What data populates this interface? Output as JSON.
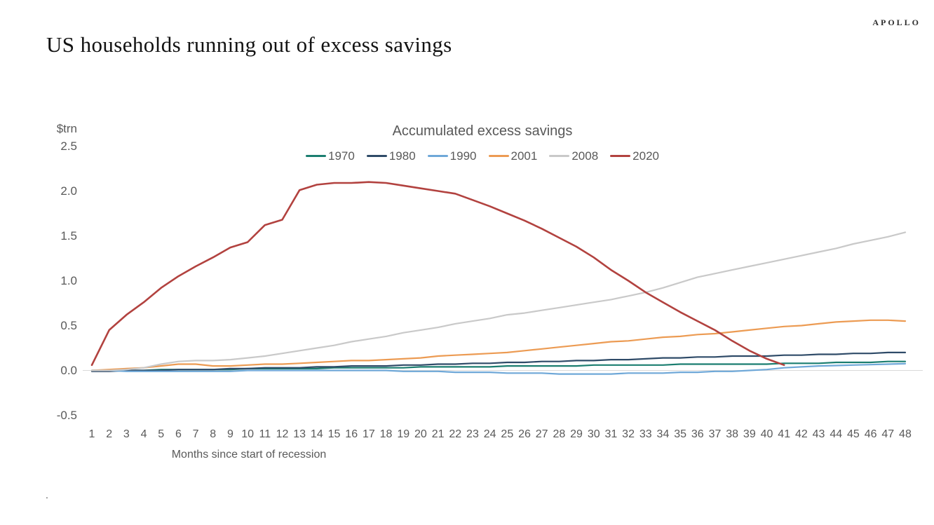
{
  "header": {
    "brand": "APOLLO",
    "title": "US households running out of excess savings"
  },
  "footer_dot": ".",
  "chart_data": {
    "type": "line",
    "title": "Accumulated excess savings",
    "ylabel_unit": "$trn",
    "xlabel": "Months since start of recession",
    "ylim": [
      -0.5,
      2.5
    ],
    "yticks": [
      "2.5",
      "2.0",
      "1.5",
      "1.0",
      "0.5",
      "0.0",
      "-0.5"
    ],
    "grid": "zero-baseline-only",
    "legend_position": "top-center",
    "x": [
      1,
      2,
      3,
      4,
      5,
      6,
      7,
      8,
      9,
      10,
      11,
      12,
      13,
      14,
      15,
      16,
      17,
      18,
      19,
      20,
      21,
      22,
      23,
      24,
      25,
      26,
      27,
      28,
      29,
      30,
      31,
      32,
      33,
      34,
      35,
      36,
      37,
      38,
      39,
      40,
      41,
      42,
      43,
      44,
      45,
      46,
      47,
      48
    ],
    "series": [
      {
        "name": "1970",
        "color": "#1B7E70",
        "values": [
          0.0,
          0.0,
          0.0,
          0.0,
          0.01,
          0.01,
          0.01,
          0.01,
          0.01,
          0.02,
          0.02,
          0.02,
          0.02,
          0.02,
          0.03,
          0.03,
          0.03,
          0.03,
          0.03,
          0.04,
          0.04,
          0.04,
          0.04,
          0.04,
          0.05,
          0.05,
          0.05,
          0.05,
          0.05,
          0.06,
          0.06,
          0.06,
          0.06,
          0.06,
          0.07,
          0.07,
          0.07,
          0.07,
          0.07,
          0.07,
          0.08,
          0.08,
          0.08,
          0.09,
          0.09,
          0.09,
          0.1,
          0.1
        ]
      },
      {
        "name": "1980",
        "color": "#2F4B68",
        "values": [
          -0.01,
          -0.01,
          0.0,
          0.0,
          0.0,
          0.01,
          0.01,
          0.01,
          0.02,
          0.02,
          0.03,
          0.03,
          0.03,
          0.04,
          0.04,
          0.05,
          0.05,
          0.05,
          0.06,
          0.06,
          0.07,
          0.07,
          0.08,
          0.08,
          0.09,
          0.09,
          0.1,
          0.1,
          0.11,
          0.11,
          0.12,
          0.12,
          0.13,
          0.14,
          0.14,
          0.15,
          0.15,
          0.16,
          0.16,
          0.16,
          0.17,
          0.17,
          0.18,
          0.18,
          0.19,
          0.19,
          0.2,
          0.2
        ]
      },
      {
        "name": "1990",
        "color": "#6FA8D8",
        "values": [
          0.0,
          0.0,
          -0.01,
          -0.01,
          -0.01,
          -0.01,
          -0.01,
          -0.01,
          -0.01,
          0.0,
          0.0,
          0.0,
          0.0,
          0.0,
          0.0,
          0.0,
          0.0,
          0.0,
          -0.01,
          -0.01,
          -0.01,
          -0.02,
          -0.02,
          -0.02,
          -0.03,
          -0.03,
          -0.03,
          -0.04,
          -0.04,
          -0.04,
          -0.04,
          -0.03,
          -0.03,
          -0.03,
          -0.02,
          -0.02,
          -0.01,
          -0.01,
          0.0,
          0.01,
          0.03,
          0.04,
          0.05,
          0.055,
          0.06,
          0.065,
          0.07,
          0.075
        ]
      },
      {
        "name": "2001",
        "color": "#EC9B53",
        "values": [
          0.0,
          0.01,
          0.02,
          0.03,
          0.05,
          0.07,
          0.07,
          0.05,
          0.05,
          0.06,
          0.07,
          0.07,
          0.08,
          0.09,
          0.1,
          0.11,
          0.11,
          0.12,
          0.13,
          0.14,
          0.16,
          0.17,
          0.18,
          0.19,
          0.2,
          0.22,
          0.24,
          0.26,
          0.28,
          0.3,
          0.32,
          0.33,
          0.35,
          0.37,
          0.38,
          0.4,
          0.41,
          0.43,
          0.45,
          0.47,
          0.49,
          0.5,
          0.52,
          0.54,
          0.55,
          0.56,
          0.56,
          0.55
        ]
      },
      {
        "name": "2008",
        "color": "#C9C9C9",
        "values": [
          0.0,
          0.0,
          0.01,
          0.03,
          0.07,
          0.1,
          0.11,
          0.11,
          0.12,
          0.14,
          0.16,
          0.19,
          0.22,
          0.25,
          0.28,
          0.32,
          0.35,
          0.38,
          0.42,
          0.45,
          0.48,
          0.52,
          0.55,
          0.58,
          0.62,
          0.64,
          0.67,
          0.7,
          0.73,
          0.76,
          0.79,
          0.83,
          0.87,
          0.92,
          0.98,
          1.04,
          1.08,
          1.12,
          1.16,
          1.2,
          1.24,
          1.28,
          1.32,
          1.36,
          1.41,
          1.45,
          1.49,
          1.54
        ]
      },
      {
        "name": "2020",
        "color": "#B2423F",
        "values": [
          0.06,
          0.45,
          0.62,
          0.76,
          0.92,
          1.05,
          1.16,
          1.26,
          1.37,
          1.43,
          1.62,
          1.68,
          2.01,
          2.07,
          2.09,
          2.09,
          2.1,
          2.09,
          2.06,
          2.03,
          2.0,
          1.97,
          1.9,
          1.83,
          1.75,
          1.67,
          1.58,
          1.48,
          1.38,
          1.26,
          1.12,
          1.0,
          0.87,
          0.76,
          0.65,
          0.55,
          0.45,
          0.33,
          0.22,
          0.13,
          0.06
        ]
      }
    ]
  }
}
